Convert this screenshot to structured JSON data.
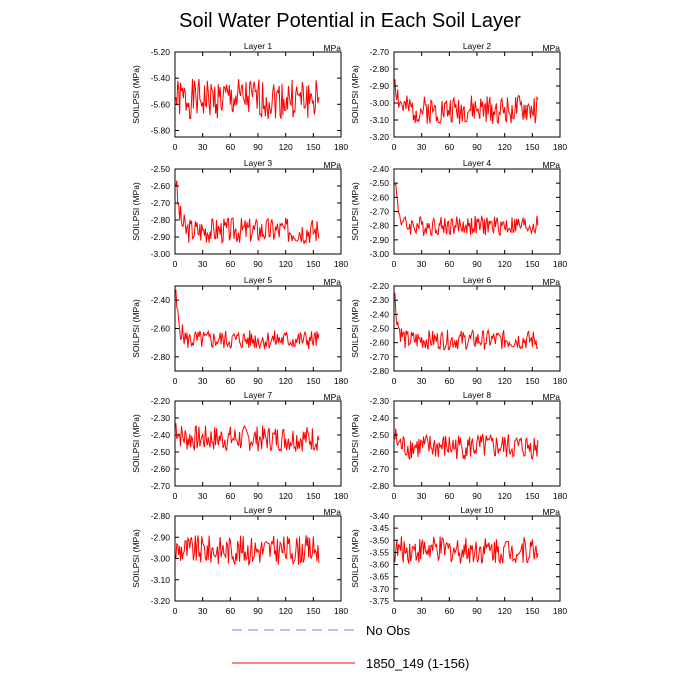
{
  "title": "Soil Water Potential in Each Soil Layer",
  "legend": {
    "items": [
      {
        "label": "No Obs",
        "color": "#8080ff",
        "dashed": true
      },
      {
        "label": "1850_149 (1-156)",
        "color": "#ff0000",
        "dashed": false
      }
    ]
  },
  "chart_data": [
    {
      "type": "line",
      "title": "Layer 1",
      "units": "MPa",
      "ylabel": "SOILPSI  (MPa)",
      "xlim": [
        0,
        180
      ],
      "xticks": [
        0,
        30,
        60,
        90,
        120,
        150,
        180
      ],
      "ylim": [
        -5.85,
        -5.2
      ],
      "yticks": [
        -5.8,
        -5.6,
        -5.4,
        -5.2
      ],
      "ytick_labels": [
        "-5.80",
        "-5.60",
        "-5.40",
        "-5.20"
      ],
      "base": -5.56,
      "amp": 0.11,
      "drop": 0.0,
      "seed": 1,
      "series": [
        {
          "name": "1850_149 (1-156)",
          "color": "#ff0000"
        }
      ]
    },
    {
      "type": "line",
      "title": "Layer 2",
      "units": "MPa",
      "ylabel": "SOILPSI  (MPa)",
      "xlim": [
        0,
        180
      ],
      "xticks": [
        0,
        30,
        60,
        90,
        120,
        150,
        180
      ],
      "ylim": [
        -3.2,
        -2.7
      ],
      "yticks": [
        -3.2,
        -3.1,
        -3.0,
        -2.9,
        -2.8,
        -2.7
      ],
      "ytick_labels": [
        "-3.20",
        "-3.10",
        "-3.00",
        "-2.90",
        "-2.80",
        "-2.70"
      ],
      "base": -3.04,
      "amp": 0.06,
      "drop": 0.2,
      "seed": 2,
      "series": [
        {
          "name": "1850_149 (1-156)",
          "color": "#ff0000"
        }
      ]
    },
    {
      "type": "line",
      "title": "Layer 3",
      "units": "MPa",
      "ylabel": "SOILPSI  (MPa)",
      "xlim": [
        0,
        180
      ],
      "xticks": [
        0,
        30,
        60,
        90,
        120,
        150,
        180
      ],
      "ylim": [
        -3.0,
        -2.5
      ],
      "yticks": [
        -3.0,
        -2.9,
        -2.8,
        -2.7,
        -2.6,
        -2.5
      ],
      "ytick_labels": [
        "-3.00",
        "-2.90",
        "-2.80",
        "-2.70",
        "-2.60",
        "-2.50"
      ],
      "base": -2.86,
      "amp": 0.055,
      "drop": 0.3,
      "seed": 3,
      "series": [
        {
          "name": "1850_149 (1-156)",
          "color": "#ff0000"
        }
      ]
    },
    {
      "type": "line",
      "title": "Layer 4",
      "units": "MPa",
      "ylabel": "SOILPSI  (MPa)",
      "xlim": [
        0,
        180
      ],
      "xticks": [
        0,
        30,
        60,
        90,
        120,
        150,
        180
      ],
      "ylim": [
        -3.0,
        -2.4
      ],
      "yticks": [
        -3.0,
        -2.9,
        -2.8,
        -2.7,
        -2.6,
        -2.5,
        -2.4
      ],
      "ytick_labels": [
        "-3.00",
        "-2.90",
        "-2.80",
        "-2.70",
        "-2.60",
        "-2.50",
        "-2.40"
      ],
      "base": -2.8,
      "amp": 0.05,
      "drop": 0.35,
      "seed": 4,
      "series": [
        {
          "name": "1850_149 (1-156)",
          "color": "#ff0000"
        }
      ]
    },
    {
      "type": "line",
      "title": "Layer 5",
      "units": "MPa",
      "ylabel": "SOILPSI  (MPa)",
      "xlim": [
        0,
        180
      ],
      "xticks": [
        0,
        30,
        60,
        90,
        120,
        150,
        180
      ],
      "ylim": [
        -2.9,
        -2.3
      ],
      "yticks": [
        -2.8,
        -2.6,
        -2.4
      ],
      "ytick_labels": [
        "-2.80",
        "-2.60",
        "-2.40"
      ],
      "base": -2.68,
      "amp": 0.05,
      "drop": 0.3,
      "seed": 5,
      "series": [
        {
          "name": "1850_149 (1-156)",
          "color": "#ff0000"
        }
      ]
    },
    {
      "type": "line",
      "title": "Layer 6",
      "units": "MPa",
      "ylabel": "SOILPSI  (MPa)",
      "xlim": [
        0,
        180
      ],
      "xticks": [
        0,
        30,
        60,
        90,
        120,
        150,
        180
      ],
      "ylim": [
        -2.8,
        -2.2
      ],
      "yticks": [
        -2.8,
        -2.7,
        -2.6,
        -2.5,
        -2.4,
        -2.3,
        -2.2
      ],
      "ytick_labels": [
        "-2.80",
        "-2.70",
        "-2.60",
        "-2.50",
        "-2.40",
        "-2.30",
        "-2.20"
      ],
      "base": -2.58,
      "amp": 0.05,
      "drop": 0.3,
      "seed": 6,
      "series": [
        {
          "name": "1850_149 (1-156)",
          "color": "#ff0000"
        }
      ]
    },
    {
      "type": "line",
      "title": "Layer 7",
      "units": "MPa",
      "ylabel": "SOILPSI  (MPa)",
      "xlim": [
        0,
        180
      ],
      "xticks": [
        0,
        30,
        60,
        90,
        120,
        150,
        180
      ],
      "ylim": [
        -2.7,
        -2.2
      ],
      "yticks": [
        -2.7,
        -2.6,
        -2.5,
        -2.4,
        -2.3,
        -2.2
      ],
      "ytick_labels": [
        "-2.70",
        "-2.60",
        "-2.50",
        "-2.40",
        "-2.30",
        "-2.20"
      ],
      "base": -2.42,
      "amp": 0.055,
      "drop": 0.08,
      "seed": 7,
      "series": [
        {
          "name": "1850_149 (1-156)",
          "color": "#ff0000"
        }
      ]
    },
    {
      "type": "line",
      "title": "Layer 8",
      "units": "MPa",
      "ylabel": "SOILPSI  (MPa)",
      "xlim": [
        0,
        180
      ],
      "xticks": [
        0,
        30,
        60,
        90,
        120,
        150,
        180
      ],
      "ylim": [
        -2.8,
        -2.3
      ],
      "yticks": [
        -2.8,
        -2.7,
        -2.6,
        -2.5,
        -2.4,
        -2.3
      ],
      "ytick_labels": [
        "-2.80",
        "-2.70",
        "-2.60",
        "-2.50",
        "-2.40",
        "-2.30"
      ],
      "base": -2.57,
      "amp": 0.055,
      "drop": 0.06,
      "seed": 8,
      "series": [
        {
          "name": "1850_149 (1-156)",
          "color": "#ff0000"
        }
      ]
    },
    {
      "type": "line",
      "title": "Layer 9",
      "units": "MPa",
      "ylabel": "SOILPSI  (MPa)",
      "xlim": [
        0,
        180
      ],
      "xticks": [
        0,
        30,
        60,
        90,
        120,
        150,
        180
      ],
      "ylim": [
        -3.2,
        -2.8
      ],
      "yticks": [
        -3.2,
        -3.1,
        -3.0,
        -2.9,
        -2.8
      ],
      "ytick_labels": [
        "-3.20",
        "-3.10",
        "-3.00",
        "-2.90",
        "-2.80"
      ],
      "base": -2.96,
      "amp": 0.05,
      "drop": 0.0,
      "seed": 9,
      "series": [
        {
          "name": "1850_149 (1-156)",
          "color": "#ff0000"
        }
      ]
    },
    {
      "type": "line",
      "title": "Layer 10",
      "units": "MPa",
      "ylabel": "SOILPSI  (MPa)",
      "xlim": [
        0,
        180
      ],
      "xticks": [
        0,
        30,
        60,
        90,
        120,
        150,
        180
      ],
      "ylim": [
        -3.75,
        -3.4
      ],
      "yticks": [
        -3.75,
        -3.7,
        -3.65,
        -3.6,
        -3.55,
        -3.5,
        -3.45,
        -3.4
      ],
      "ytick_labels": [
        "-3.75",
        "-3.70",
        "-3.65",
        "-3.60",
        "-3.55",
        "-3.50",
        "-3.45",
        "-3.40"
      ],
      "base": -3.54,
      "amp": 0.04,
      "drop": 0.0,
      "seed": 10,
      "series": [
        {
          "name": "1850_149 (1-156)",
          "color": "#ff0000"
        }
      ]
    }
  ]
}
